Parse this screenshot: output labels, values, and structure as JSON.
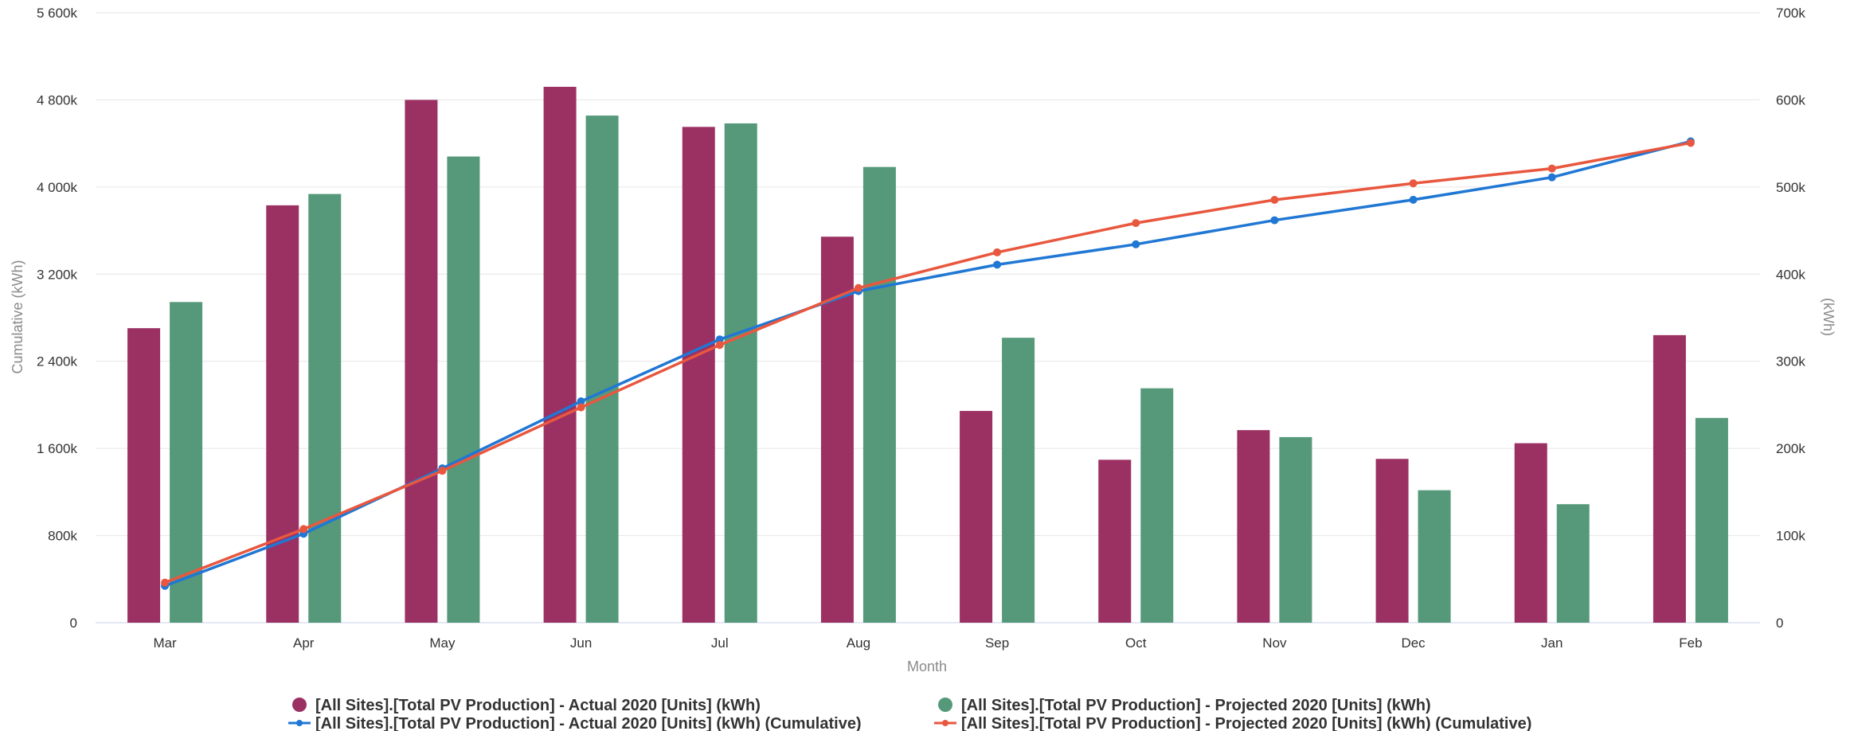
{
  "chart_data": {
    "type": "bar",
    "categories": [
      "Mar",
      "Apr",
      "May",
      "Jun",
      "Jul",
      "Aug",
      "Sep",
      "Oct",
      "Nov",
      "Dec",
      "Jan",
      "Feb"
    ],
    "series": [
      {
        "name": "[All Sites].[Total PV Production] - Actual 2020 [Units] (kWh)",
        "kind": "bar",
        "axis": "right",
        "color": "#9b3163",
        "values": [
          338000,
          479000,
          600000,
          615000,
          569000,
          443000,
          243000,
          187000,
          221000,
          188000,
          206000,
          330000
        ]
      },
      {
        "name": "[All Sites].[Total PV Production] - Projected 2020 [Units] (kWh)",
        "kind": "bar",
        "axis": "right",
        "color": "#55997a",
        "values": [
          368000,
          492000,
          535000,
          582000,
          573000,
          523000,
          327000,
          269000,
          213000,
          152000,
          136000,
          235000
        ]
      },
      {
        "name": "[All Sites].[Total PV Production] - Actual 2020 [Units] (kWh) (Cumulative)",
        "kind": "line",
        "axis": "left",
        "color": "#2077d4",
        "values": [
          338000,
          817000,
          1417000,
          2032000,
          2601000,
          3044000,
          3287000,
          3474000,
          3695000,
          3883000,
          4089000,
          4419000
        ]
      },
      {
        "name": "[All Sites].[Total PV Production] - Projected 2020 [Units] (kWh) (Cumulative)",
        "kind": "line",
        "axis": "left",
        "color": "#e8573e",
        "values": [
          368000,
          860000,
          1395000,
          1977000,
          2550000,
          3073000,
          3400000,
          3669000,
          3882000,
          4034000,
          4170000,
          4405000
        ]
      }
    ],
    "left_axis": {
      "label": "Cumulative (kWh)",
      "range": [
        0,
        5600000
      ],
      "ticks": [
        "0",
        "800k",
        "1 600k",
        "2 400k",
        "3 200k",
        "4 000k",
        "4 800k",
        "5 600k"
      ]
    },
    "right_axis": {
      "label": "(kWh)",
      "range": [
        0,
        700000
      ],
      "ticks": [
        "0",
        "100k",
        "200k",
        "300k",
        "400k",
        "500k",
        "600k",
        "700k"
      ]
    },
    "xlabel": "Month",
    "grid": true,
    "legend_position": "bottom"
  }
}
